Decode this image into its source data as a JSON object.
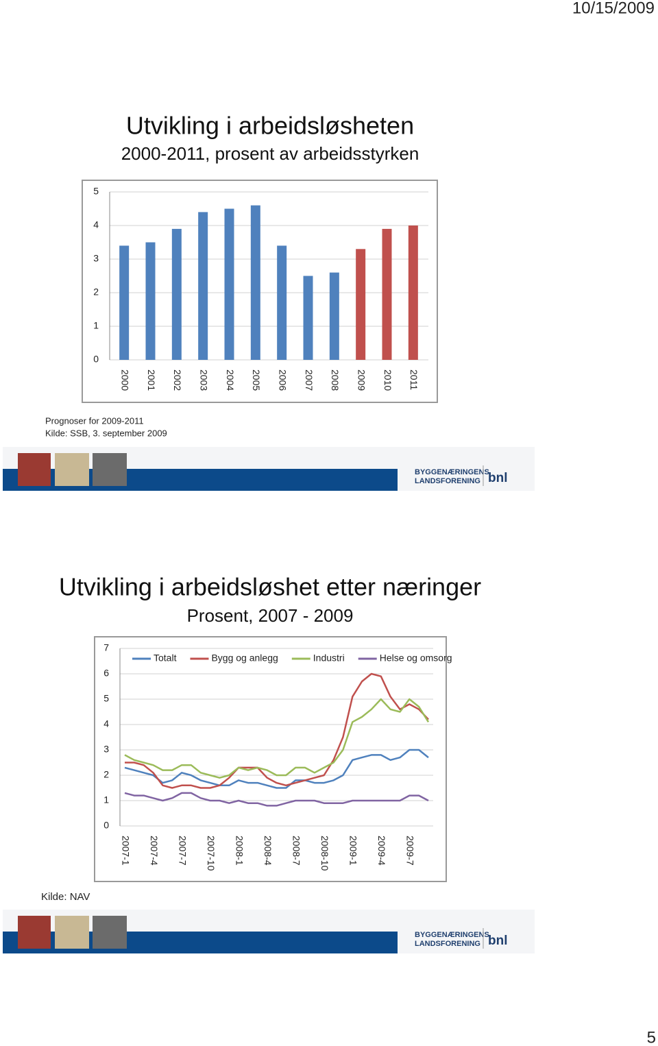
{
  "date": "10/15/2009",
  "page_number": "5",
  "footer": {
    "org_line1": "BYGGENÆRINGENS",
    "org_line2": "LANDSFORENING",
    "logo": "bnl"
  },
  "notes": [
    "Prognoser for 2009-2011",
    "Kilde: SSB, 3. september 2009",
    "Kilde: NAV"
  ],
  "chart_data": [
    {
      "type": "bar",
      "title": "Utvikling i arbeidsløsheten",
      "subtitle": "2000-2011, prosent av arbeidsstyrken",
      "categories": [
        "2000",
        "2001",
        "2002",
        "2003",
        "2004",
        "2005",
        "2006",
        "2007",
        "2008",
        "2009",
        "2010",
        "2011"
      ],
      "values": [
        3.4,
        3.5,
        3.9,
        4.4,
        4.5,
        4.6,
        3.4,
        2.5,
        2.6,
        3.3,
        3.9,
        4.0
      ],
      "colors": [
        "#4f81bd",
        "#4f81bd",
        "#4f81bd",
        "#4f81bd",
        "#4f81bd",
        "#4f81bd",
        "#4f81bd",
        "#4f81bd",
        "#4f81bd",
        "#c0504d",
        "#c0504d",
        "#c0504d"
      ],
      "ylim": [
        0,
        5
      ],
      "yticks": [
        0,
        1,
        2,
        3,
        4,
        5
      ],
      "grid": true
    },
    {
      "type": "line",
      "title": "Utvikling i arbeidsløshet etter næringer",
      "subtitle": "Prosent, 2007 - 2009",
      "categories": [
        "2007-1",
        null,
        null,
        "2007-4",
        null,
        null,
        "2007-7",
        null,
        null,
        "2007-10",
        null,
        null,
        "2008-1",
        null,
        null,
        "2008-4",
        null,
        null,
        "2008-7",
        null,
        null,
        "2008-10",
        null,
        null,
        "2009-1",
        null,
        null,
        "2009-4",
        null,
        null,
        "2009-7",
        null,
        null
      ],
      "series": [
        {
          "name": "Totalt",
          "color": "#4f81bd",
          "values": [
            2.3,
            2.2,
            2.1,
            2.0,
            1.7,
            1.8,
            2.1,
            2.0,
            1.8,
            1.7,
            1.6,
            1.6,
            1.8,
            1.7,
            1.7,
            1.6,
            1.5,
            1.5,
            1.8,
            1.8,
            1.7,
            1.7,
            1.8,
            2.0,
            2.6,
            2.7,
            2.8,
            2.8,
            2.6,
            2.7,
            3.0,
            3.0,
            2.7
          ]
        },
        {
          "name": "Bygg og anlegg",
          "color": "#c0504d",
          "values": [
            2.5,
            2.5,
            2.4,
            2.1,
            1.6,
            1.5,
            1.6,
            1.6,
            1.5,
            1.5,
            1.6,
            1.9,
            2.3,
            2.3,
            2.3,
            1.9,
            1.7,
            1.6,
            1.7,
            1.8,
            1.9,
            2.0,
            2.6,
            3.5,
            5.1,
            5.7,
            6.0,
            5.9,
            5.1,
            4.6,
            4.8,
            4.6,
            4.2
          ]
        },
        {
          "name": "Industri",
          "color": "#9bbb59",
          "values": [
            2.8,
            2.6,
            2.5,
            2.4,
            2.2,
            2.2,
            2.4,
            2.4,
            2.1,
            2.0,
            1.9,
            2.0,
            2.3,
            2.2,
            2.3,
            2.2,
            2.0,
            2.0,
            2.3,
            2.3,
            2.1,
            2.3,
            2.5,
            3.0,
            4.1,
            4.3,
            4.6,
            5.0,
            4.6,
            4.5,
            5.0,
            4.7,
            4.1
          ]
        },
        {
          "name": "Helse og omsorg",
          "color": "#8064a2",
          "values": [
            1.3,
            1.2,
            1.2,
            1.1,
            1.0,
            1.1,
            1.3,
            1.3,
            1.1,
            1.0,
            1.0,
            0.9,
            1.0,
            0.9,
            0.9,
            0.8,
            0.8,
            0.9,
            1.0,
            1.0,
            1.0,
            0.9,
            0.9,
            0.9,
            1.0,
            1.0,
            1.0,
            1.0,
            1.0,
            1.0,
            1.2,
            1.2,
            1.0
          ]
        }
      ],
      "ylim": [
        0,
        7
      ],
      "yticks": [
        0,
        1,
        2,
        3,
        4,
        5,
        6,
        7
      ],
      "grid": true,
      "legend": "top"
    }
  ]
}
